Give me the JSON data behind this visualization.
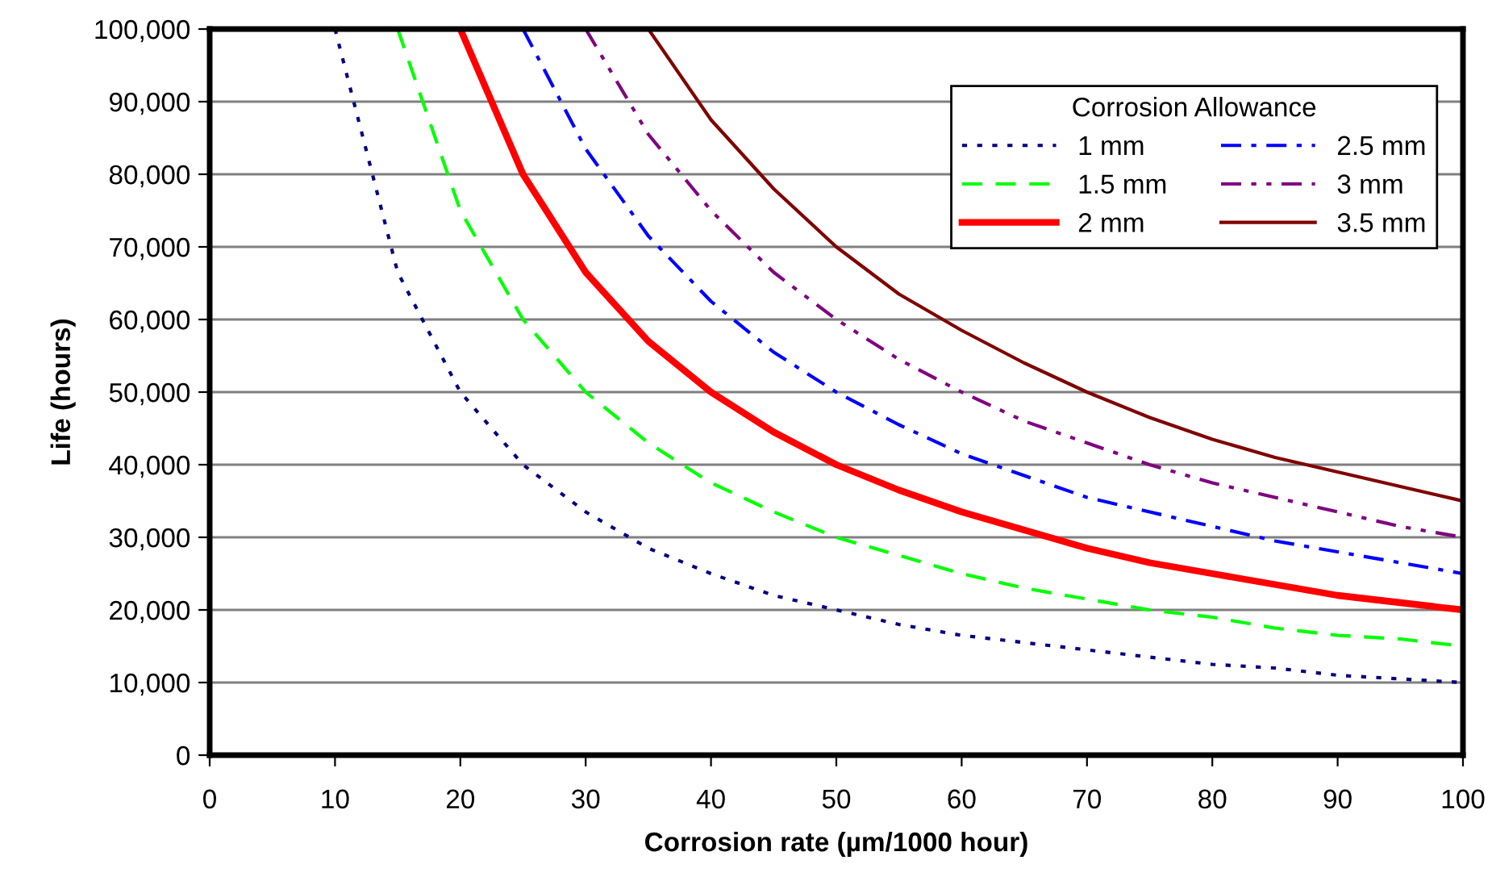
{
  "chart_data": {
    "type": "line",
    "xlabel": "Corrosion rate (µm/1000 hour)",
    "ylabel": "Life (hours)",
    "legend_title": "Corrosion Allowance",
    "xlim": [
      0,
      100
    ],
    "xticks": [
      0,
      10,
      20,
      30,
      40,
      50,
      60,
      70,
      80,
      90,
      100
    ],
    "ylim": [
      0,
      100000
    ],
    "yticks": [
      {
        "value": 0,
        "label": "0"
      },
      {
        "value": 10000,
        "label": "10,000"
      },
      {
        "value": 20000,
        "label": "20,000"
      },
      {
        "value": 30000,
        "label": "30,000"
      },
      {
        "value": 40000,
        "label": "40,000"
      },
      {
        "value": 50000,
        "label": "50,000"
      },
      {
        "value": 60000,
        "label": "60,000"
      },
      {
        "value": 70000,
        "label": "70,000"
      },
      {
        "value": 80000,
        "label": "80,000"
      },
      {
        "value": 90000,
        "label": "90,000"
      },
      {
        "value": 100000,
        "label": "100,000"
      }
    ],
    "grid": "y",
    "legend": "top right",
    "marker": "none",
    "series": [
      {
        "name": "1 mm",
        "color": "#000080",
        "line_style": "dotted",
        "x": [
          10,
          15,
          20,
          25,
          30,
          35,
          40,
          45,
          50,
          55,
          60,
          65,
          70,
          75,
          80,
          85,
          90,
          95,
          100
        ],
        "values": [
          100000,
          66500,
          50000,
          40000,
          33500,
          28500,
          25000,
          22000,
          20000,
          18000,
          16500,
          15500,
          14500,
          13500,
          12500,
          12000,
          11000,
          10500,
          10000
        ]
      },
      {
        "name": "1.5 mm",
        "color": "#00ff00",
        "line_style": "dashed",
        "x": [
          15,
          20,
          25,
          30,
          35,
          40,
          45,
          50,
          55,
          60,
          65,
          70,
          75,
          80,
          85,
          90,
          95,
          100
        ],
        "values": [
          100000,
          75000,
          60000,
          50000,
          43000,
          37500,
          33500,
          30000,
          27500,
          25000,
          23000,
          21500,
          20000,
          19000,
          17500,
          16500,
          16000,
          15000
        ]
      },
      {
        "name": "2 mm",
        "color": "#ff0000",
        "line_style": "solid",
        "x": [
          20,
          25,
          30,
          35,
          40,
          45,
          50,
          55,
          60,
          65,
          70,
          75,
          80,
          85,
          90,
          95,
          100
        ],
        "values": [
          100000,
          80000,
          66500,
          57000,
          50000,
          44500,
          40000,
          36500,
          33500,
          31000,
          28500,
          26500,
          25000,
          23500,
          22000,
          21000,
          20000
        ]
      },
      {
        "name": "2.5 mm",
        "color": "#0000ff",
        "line_style": "dashdot",
        "x": [
          25,
          30,
          35,
          40,
          45,
          50,
          55,
          60,
          65,
          70,
          75,
          80,
          85,
          90,
          95,
          100
        ],
        "values": [
          100000,
          83500,
          71500,
          62500,
          55500,
          50000,
          45500,
          41500,
          38500,
          35500,
          33500,
          31500,
          29500,
          28000,
          26500,
          25000
        ]
      },
      {
        "name": "3 mm",
        "color": "#800080",
        "line_style": "dashdotdot",
        "x": [
          30,
          35,
          40,
          45,
          50,
          55,
          60,
          65,
          70,
          75,
          80,
          85,
          90,
          95,
          100
        ],
        "values": [
          100000,
          85500,
          75000,
          66500,
          60000,
          54500,
          50000,
          46000,
          43000,
          40000,
          37500,
          35500,
          33500,
          31500,
          30000
        ]
      },
      {
        "name": "3.5 mm",
        "color": "#800000",
        "line_style": "solid",
        "x": [
          35,
          40,
          45,
          50,
          55,
          60,
          65,
          70,
          75,
          80,
          85,
          90,
          95,
          100
        ],
        "values": [
          100000,
          87500,
          78000,
          70000,
          63500,
          58500,
          54000,
          50000,
          46500,
          43500,
          41000,
          39000,
          37000,
          35000
        ]
      }
    ]
  }
}
